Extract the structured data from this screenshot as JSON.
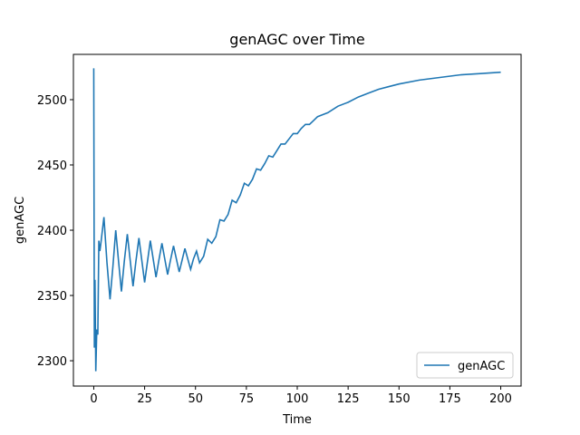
{
  "chart_data": {
    "type": "line",
    "title": "genAGC over Time",
    "xlabel": "Time",
    "ylabel": "genAGC",
    "x": [
      0,
      0.3,
      0.6,
      1,
      1.5,
      2,
      2.5,
      3,
      3.5,
      5,
      6.5,
      8,
      9.4,
      10.8,
      12.2,
      13.6,
      15,
      16.5,
      17.9,
      19.3,
      20.7,
      22.2,
      23.6,
      25,
      26.4,
      27.8,
      29.2,
      30.6,
      32,
      33.5,
      34.9,
      36.3,
      37.7,
      39.2,
      40.6,
      42,
      43.4,
      44.8,
      46.2,
      47.6,
      49,
      50.5,
      52,
      54,
      56,
      58,
      60,
      62,
      64,
      66,
      68,
      70,
      72,
      74,
      76,
      78,
      80,
      82,
      84,
      86,
      88,
      90,
      92,
      94,
      96,
      98,
      100,
      102,
      104,
      106,
      108,
      110,
      115,
      120,
      125,
      130,
      135,
      140,
      145,
      150,
      160,
      170,
      180,
      190,
      200
    ],
    "series": [
      {
        "name": "genAGC",
        "color": "#1f77b4",
        "values": [
          2524,
          2310,
          2362,
          2292,
          2324,
          2320,
          2392,
          2384,
          2390,
          2410,
          2375,
          2347,
          2372,
          2400,
          2376,
          2353,
          2376,
          2397,
          2377,
          2357,
          2376,
          2394,
          2377,
          2360,
          2376,
          2392,
          2378,
          2364,
          2377,
          2390,
          2378,
          2366,
          2377,
          2388,
          2378,
          2368,
          2377,
          2386,
          2378,
          2370,
          2378,
          2384,
          2375,
          2380,
          2393,
          2390,
          2395,
          2408,
          2407,
          2412,
          2423,
          2421,
          2427,
          2436,
          2434,
          2439,
          2447,
          2446,
          2451,
          2457,
          2456,
          2461,
          2466,
          2466,
          2470,
          2474,
          2474,
          2478,
          2481,
          2481,
          2484,
          2487,
          2490,
          2495,
          2498,
          2502,
          2505,
          2508,
          2510,
          2512,
          2515,
          2517,
          2519,
          2520,
          2521
        ]
      }
    ],
    "xlim": [
      -10,
      210
    ],
    "ylim": [
      2280.6,
      2534.7
    ],
    "xticks": [
      0,
      25,
      50,
      75,
      100,
      125,
      150,
      175,
      200
    ],
    "yticks": [
      2300,
      2350,
      2400,
      2450,
      2500
    ],
    "legend": "lower right"
  }
}
